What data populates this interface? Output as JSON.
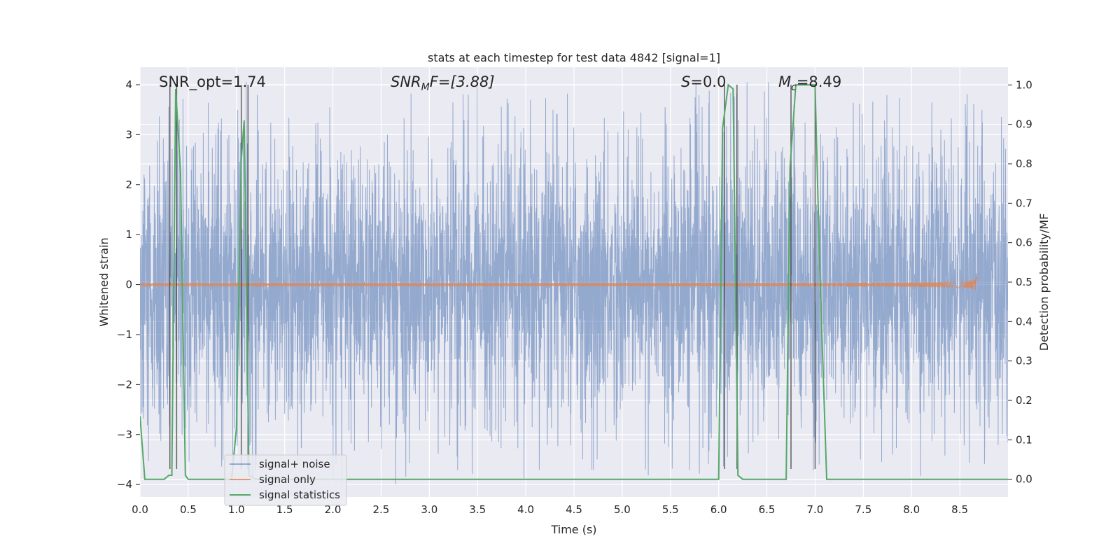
{
  "chart_data": {
    "type": "line",
    "title": "stats at each timestep for test data 4842 [signal=1]",
    "xlabel": "Time (s)",
    "ylabel": "Whitened strain",
    "ylabel_right": "Detection probability/MF",
    "xlim": [
      0.0,
      9.0
    ],
    "ylim": [
      -4.25,
      4.35
    ],
    "ylim_right": [
      -0.045,
      1.045
    ],
    "x_ticks": [
      0.0,
      0.5,
      1.0,
      1.5,
      2.0,
      2.5,
      3.0,
      3.5,
      4.0,
      4.5,
      5.0,
      5.5,
      6.0,
      6.5,
      7.0,
      7.5,
      8.0,
      8.5
    ],
    "x_tick_labels": [
      "0.0",
      "0.5",
      "1.0",
      "1.5",
      "2.0",
      "2.5",
      "3.0",
      "3.5",
      "4.0",
      "4.5",
      "5.0",
      "5.5",
      "6.0",
      "6.5",
      "7.0",
      "7.5",
      "8.0",
      "8.5"
    ],
    "y_ticks": [
      4,
      3,
      2,
      1,
      0,
      -1,
      -2,
      -3,
      -4
    ],
    "y_tick_labels": [
      "4",
      "3",
      "2",
      "1",
      "0",
      "−1",
      "−2",
      "−3",
      "−4"
    ],
    "y2_ticks": [
      1.0,
      0.9,
      0.8,
      0.7,
      0.6,
      0.5,
      0.4,
      0.3,
      0.2,
      0.1,
      0.0
    ],
    "y2_tick_labels": [
      "1.0",
      "0.9",
      "0.8",
      "0.7",
      "0.6",
      "0.5",
      "0.4",
      "0.3",
      "0.2",
      "0.1",
      "0.0"
    ],
    "grid": true,
    "legend_position": "lower-left",
    "annotations": {
      "snr_opt": "SNR_opt=1.74",
      "snr_mf": "SNR",
      "snr_mf_sub": "M",
      "snr_mf_rest": "F=[3.88]",
      "s_label": "S",
      "s_value": "=0.0",
      "mc_label": "M",
      "mc_sub": "c",
      "mc_value": "=8.49"
    },
    "series": [
      {
        "name": "signal+ noise",
        "color": "#4c72b0",
        "axis": "left",
        "noise_envelope": {
          "core_amplitude": 1.7,
          "peak_max": 3.9,
          "x_range": [
            0.0,
            9.0
          ]
        }
      },
      {
        "name": "signal only",
        "color": "#dd8452",
        "axis": "left",
        "chirp": {
          "start": 0.0,
          "merger": 8.68,
          "peak_amplitude": 0.2
        }
      },
      {
        "name": "signal statistics",
        "color": "#55a868",
        "axis": "right",
        "x": [
          0.0,
          0.05,
          0.1,
          0.2,
          0.25,
          0.3,
          0.33,
          0.37,
          0.42,
          0.47,
          0.5,
          0.8,
          0.95,
          1.0,
          1.05,
          1.08,
          1.13,
          1.2,
          1.25,
          5.0,
          6.0,
          6.04,
          6.1,
          6.15,
          6.2,
          6.25,
          6.3,
          6.7,
          6.74,
          6.8,
          7.0,
          7.05,
          7.12,
          7.2,
          9.0
        ],
        "values": [
          0.16,
          0.0,
          0.0,
          0.0,
          0.0,
          0.01,
          0.01,
          0.99,
          0.78,
          0.01,
          0.0,
          0.0,
          0.0,
          0.13,
          0.81,
          0.91,
          0.01,
          0.0,
          0.0,
          0.0,
          0.0,
          0.89,
          1.0,
          0.99,
          0.01,
          0.0,
          0.0,
          0.0,
          0.79,
          1.0,
          1.0,
          0.52,
          0.0,
          0.0,
          0.0
        ]
      }
    ],
    "vertical_markers": [
      0.31,
      0.38,
      1.05,
      1.12,
      6.06,
      6.19,
      6.75,
      7.0
    ]
  }
}
